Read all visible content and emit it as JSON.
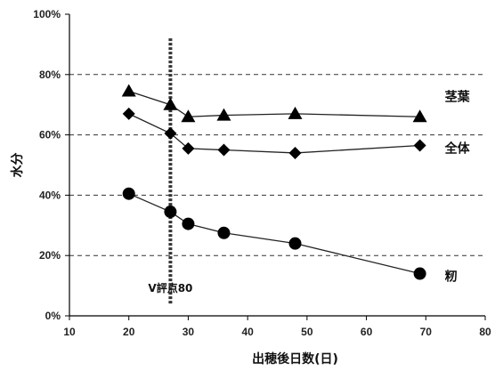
{
  "chart_data": {
    "type": "line",
    "xlabel": "出穂後日数(日)",
    "ylabel": "水分",
    "xlim": [
      10,
      80
    ],
    "ylim": [
      0,
      100
    ],
    "x_ticks": [
      "10",
      "20",
      "30",
      "40",
      "50",
      "60",
      "70",
      "80"
    ],
    "y_ticks": [
      "0%",
      "20%",
      "40%",
      "60%",
      "80%",
      "100%"
    ],
    "y_tick_values": [
      0,
      20,
      40,
      60,
      80,
      100
    ],
    "x_tick_values": [
      10,
      20,
      30,
      40,
      50,
      60,
      70,
      80
    ],
    "grid": "horizontal dashed at 20, 40, 60, 80",
    "legend": "direct labels at right end of each series",
    "series": [
      {
        "name": "茎葉",
        "marker": "triangle",
        "x": [
          20,
          27,
          30,
          36,
          48,
          69
        ],
        "y": [
          74.5,
          70,
          66,
          66.5,
          67,
          66
        ]
      },
      {
        "name": "全体",
        "marker": "diamond",
        "x": [
          20,
          27,
          30,
          36,
          48,
          69
        ],
        "y": [
          67,
          60.5,
          55.5,
          55,
          54,
          56.5
        ]
      },
      {
        "name": "籾",
        "marker": "circle",
        "x": [
          20,
          27,
          30,
          36,
          48,
          69
        ],
        "y": [
          40.5,
          34.5,
          30.5,
          27.5,
          24,
          14
        ]
      }
    ],
    "annotations": [
      {
        "type": "vline",
        "x": 27,
        "label": "V評点80"
      }
    ],
    "colors": {
      "line": "#222222",
      "marker": "#000000",
      "grid": "#333333"
    }
  }
}
